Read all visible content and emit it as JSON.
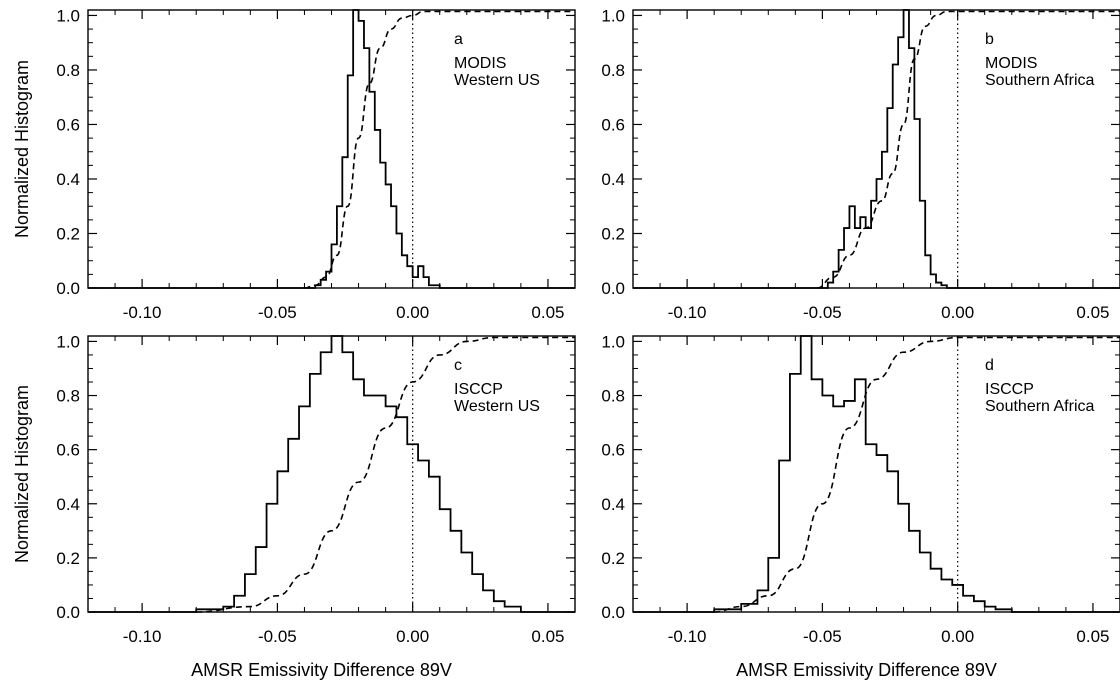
{
  "chart_data": [
    {
      "type": "line",
      "panel_letter": "a",
      "annotation": [
        "MODIS",
        "Western US"
      ],
      "ylabel": "Normalized Histogram",
      "xlabel": "",
      "xlim": [
        -0.12,
        0.06
      ],
      "ylim": [
        0,
        1.02
      ],
      "xticks": [
        "-0.10",
        "-0.05",
        "0.00",
        "0.05"
      ],
      "yticks": [
        "0.0",
        "0.2",
        "0.4",
        "0.6",
        "0.8",
        "1.0"
      ],
      "reference_line_x": 0.0,
      "series": [
        {
          "style": "histogram",
          "x": [
            -0.04,
            -0.036,
            -0.034,
            -0.032,
            -0.03,
            -0.028,
            -0.026,
            -0.024,
            -0.022,
            -0.02,
            -0.018,
            -0.016,
            -0.014,
            -0.012,
            -0.01,
            -0.008,
            -0.006,
            -0.004,
            -0.002,
            0.0,
            0.002,
            0.004,
            0.006,
            0.008,
            0.01
          ],
          "y": [
            0.0,
            0.01,
            0.03,
            0.06,
            0.16,
            0.3,
            0.48,
            0.78,
            1.02,
            0.98,
            0.88,
            0.72,
            0.58,
            0.46,
            0.38,
            0.3,
            0.2,
            0.12,
            0.08,
            0.04,
            0.08,
            0.04,
            0.01,
            0.01,
            0.0
          ]
        },
        {
          "style": "cumulative",
          "x": [
            -0.04,
            -0.036,
            -0.032,
            -0.028,
            -0.024,
            -0.02,
            -0.016,
            -0.012,
            -0.008,
            -0.004,
            0.0,
            0.004,
            0.01,
            0.02,
            0.06
          ],
          "y": [
            0.0,
            0.01,
            0.04,
            0.12,
            0.3,
            0.55,
            0.75,
            0.88,
            0.95,
            0.99,
            1.0,
            1.02,
            1.02,
            1.02,
            1.02
          ]
        }
      ]
    },
    {
      "type": "line",
      "panel_letter": "b",
      "annotation": [
        "MODIS",
        "Southern Africa"
      ],
      "ylabel": "",
      "xlabel": "",
      "xlim": [
        -0.12,
        0.06
      ],
      "ylim": [
        0,
        1.02
      ],
      "xticks": [
        "-0.10",
        "-0.05",
        "0.00",
        "0.05"
      ],
      "yticks": [
        "0.0",
        "0.2",
        "0.4",
        "0.6",
        "0.8",
        "1.0"
      ],
      "reference_line_x": 0.0,
      "series": [
        {
          "style": "histogram",
          "x": [
            -0.052,
            -0.048,
            -0.046,
            -0.044,
            -0.042,
            -0.04,
            -0.038,
            -0.036,
            -0.034,
            -0.032,
            -0.03,
            -0.028,
            -0.026,
            -0.024,
            -0.022,
            -0.02,
            -0.018,
            -0.016,
            -0.014,
            -0.012,
            -0.01,
            -0.008,
            -0.006,
            -0.004,
            -0.002
          ],
          "y": [
            0.0,
            0.02,
            0.06,
            0.14,
            0.22,
            0.3,
            0.22,
            0.26,
            0.22,
            0.32,
            0.4,
            0.5,
            0.66,
            0.82,
            0.92,
            1.02,
            0.88,
            0.62,
            0.32,
            0.12,
            0.05,
            0.02,
            0.01,
            0.0,
            0.0
          ]
        },
        {
          "style": "cumulative",
          "x": [
            -0.052,
            -0.046,
            -0.04,
            -0.034,
            -0.028,
            -0.024,
            -0.02,
            -0.016,
            -0.012,
            -0.008,
            -0.004,
            0.0,
            0.01,
            0.06
          ],
          "y": [
            0.0,
            0.04,
            0.12,
            0.22,
            0.32,
            0.42,
            0.6,
            0.84,
            0.96,
            1.0,
            1.02,
            1.02,
            1.02,
            1.02
          ]
        }
      ]
    },
    {
      "type": "line",
      "panel_letter": "c",
      "annotation": [
        "ISCCP",
        "Western US"
      ],
      "ylabel": "Normalized Histogram",
      "xlabel": "AMSR Emissivity Difference 89V",
      "xlim": [
        -0.12,
        0.06
      ],
      "ylim": [
        0,
        1.02
      ],
      "xticks": [
        "-0.10",
        "-0.05",
        "0.00",
        "0.05"
      ],
      "yticks": [
        "0.0",
        "0.2",
        "0.4",
        "0.6",
        "0.8",
        "1.0"
      ],
      "reference_line_x": 0.0,
      "series": [
        {
          "style": "histogram",
          "x": [
            -0.09,
            -0.08,
            -0.07,
            -0.066,
            -0.062,
            -0.058,
            -0.054,
            -0.05,
            -0.046,
            -0.042,
            -0.038,
            -0.034,
            -0.03,
            -0.026,
            -0.022,
            -0.018,
            -0.014,
            -0.01,
            -0.006,
            -0.002,
            0.002,
            0.006,
            0.01,
            0.014,
            0.018,
            0.022,
            0.026,
            0.03,
            0.034,
            0.04
          ],
          "y": [
            0.0,
            0.01,
            0.02,
            0.06,
            0.14,
            0.24,
            0.4,
            0.52,
            0.64,
            0.76,
            0.88,
            0.96,
            1.02,
            0.96,
            0.86,
            0.8,
            0.8,
            0.76,
            0.72,
            0.62,
            0.56,
            0.5,
            0.38,
            0.3,
            0.22,
            0.14,
            0.08,
            0.04,
            0.02,
            0.0
          ]
        },
        {
          "style": "cumulative",
          "x": [
            -0.08,
            -0.06,
            -0.05,
            -0.04,
            -0.03,
            -0.02,
            -0.01,
            0.0,
            0.01,
            0.02,
            0.03,
            0.04,
            0.06
          ],
          "y": [
            0.0,
            0.02,
            0.06,
            0.14,
            0.3,
            0.48,
            0.68,
            0.85,
            0.95,
            1.0,
            1.02,
            1.02,
            1.02
          ]
        }
      ]
    },
    {
      "type": "line",
      "panel_letter": "d",
      "annotation": [
        "ISCCP",
        "Southern Africa"
      ],
      "ylabel": "",
      "xlabel": "AMSR Emissivity Difference 89V",
      "xlim": [
        -0.12,
        0.06
      ],
      "ylim": [
        0,
        1.02
      ],
      "xticks": [
        "-0.10",
        "-0.05",
        "0.00",
        "0.05"
      ],
      "yticks": [
        "0.0",
        "0.2",
        "0.4",
        "0.6",
        "0.8",
        "1.0"
      ],
      "reference_line_x": 0.0,
      "series": [
        {
          "style": "histogram",
          "x": [
            -0.1,
            -0.09,
            -0.08,
            -0.074,
            -0.07,
            -0.066,
            -0.062,
            -0.058,
            -0.054,
            -0.05,
            -0.046,
            -0.042,
            -0.038,
            -0.034,
            -0.03,
            -0.026,
            -0.022,
            -0.018,
            -0.014,
            -0.01,
            -0.006,
            -0.002,
            0.002,
            0.006,
            0.01,
            0.014,
            0.02
          ],
          "y": [
            0.0,
            0.01,
            0.03,
            0.08,
            0.2,
            0.56,
            0.88,
            1.02,
            0.86,
            0.8,
            0.76,
            0.78,
            0.86,
            0.62,
            0.58,
            0.52,
            0.4,
            0.3,
            0.22,
            0.16,
            0.12,
            0.1,
            0.06,
            0.04,
            0.02,
            0.01,
            0.0
          ]
        },
        {
          "style": "cumulative",
          "x": [
            -0.09,
            -0.08,
            -0.07,
            -0.06,
            -0.05,
            -0.04,
            -0.03,
            -0.02,
            -0.01,
            0.0,
            0.01,
            0.06
          ],
          "y": [
            0.0,
            0.02,
            0.06,
            0.16,
            0.4,
            0.68,
            0.86,
            0.96,
            1.0,
            1.02,
            1.02,
            1.02
          ]
        }
      ]
    }
  ]
}
